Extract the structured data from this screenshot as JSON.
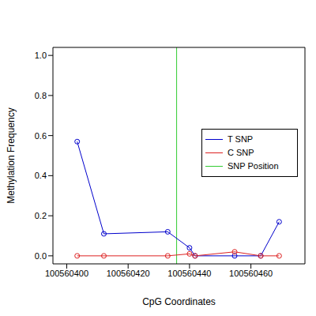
{
  "chart_data": {
    "type": "line",
    "x_label": "CpG Coordinates",
    "y_label": "Methylation Frequency",
    "xlim": [
      100560395.5,
      100560477.6
    ],
    "xticks": [
      100560400,
      100560420,
      100560440,
      100560460
    ],
    "ylim": [
      -0.04,
      1.04
    ],
    "yticks": [
      {
        "value": 0,
        "label": "0.0"
      },
      {
        "value": 0.2,
        "label": "0.2"
      },
      {
        "value": 0.4,
        "label": "0.4"
      },
      {
        "value": 0.6,
        "label": "0.6"
      },
      {
        "value": 0.8,
        "label": "0.8"
      },
      {
        "value": 1,
        "label": "1.0"
      }
    ],
    "x": [
      100560403.4,
      100560412.1,
      100560432.9,
      100560440,
      100560441.8,
      100560454.7,
      100560463.2,
      100560469.2
    ],
    "series": [
      {
        "name": "T SNP",
        "color": "#0000cc",
        "values": [
          0.57,
          0.11,
          0.12,
          0.04,
          0,
          0,
          0,
          0.17
        ],
        "marker": "circle"
      },
      {
        "name": "C SNP",
        "color": "#dd2222",
        "values": [
          0,
          0,
          0,
          0.01,
          0,
          0.02,
          0,
          0
        ],
        "marker": "circle"
      }
    ],
    "snp_position": {
      "name": "SNP Position",
      "color": "#33cc33",
      "x": 100560435.8
    },
    "legend": "right"
  }
}
